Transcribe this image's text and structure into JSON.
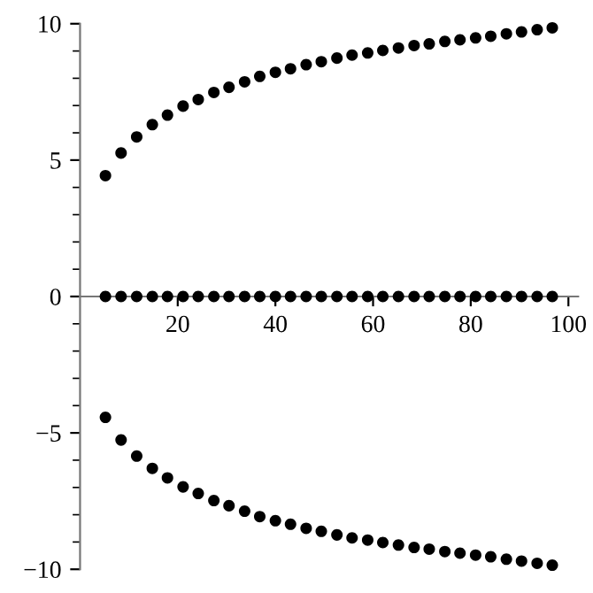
{
  "chart_data": {
    "type": "scatter",
    "marker": "circle",
    "grid": false,
    "legend": false,
    "x": [
      5.2,
      8.4,
      11.6,
      14.8,
      17.9,
      21.1,
      24.2,
      27.4,
      30.5,
      33.7,
      36.8,
      40.0,
      43.1,
      46.3,
      49.4,
      52.6,
      55.7,
      58.9,
      62.0,
      65.2,
      68.4,
      71.5,
      74.7,
      77.8,
      81.0,
      84.1,
      87.3,
      90.4,
      93.6,
      96.7
    ],
    "series": [
      {
        "color": "#000000",
        "values": [
          4.43,
          5.26,
          5.85,
          6.3,
          6.65,
          6.98,
          7.22,
          7.48,
          7.67,
          7.87,
          8.07,
          8.22,
          8.35,
          8.5,
          8.61,
          8.74,
          8.85,
          8.93,
          9.02,
          9.11,
          9.2,
          9.26,
          9.35,
          9.41,
          9.48,
          9.54,
          9.63,
          9.7,
          9.78,
          9.85
        ]
      },
      {
        "color": "#000000",
        "values": [
          0,
          0,
          0,
          0,
          0,
          0,
          0,
          0,
          0,
          0,
          0,
          0,
          0,
          0,
          0,
          0,
          0,
          0,
          0,
          0,
          0,
          0,
          0,
          0,
          0,
          0,
          0,
          0,
          0,
          0
        ]
      },
      {
        "color": "#000000",
        "values": [
          -4.43,
          -5.26,
          -5.85,
          -6.3,
          -6.65,
          -6.98,
          -7.22,
          -7.48,
          -7.67,
          -7.87,
          -8.07,
          -8.22,
          -8.35,
          -8.5,
          -8.61,
          -8.74,
          -8.85,
          -8.93,
          -9.02,
          -9.11,
          -9.2,
          -9.26,
          -9.35,
          -9.41,
          -9.48,
          -9.54,
          -9.63,
          -9.7,
          -9.78,
          -9.85
        ]
      }
    ],
    "xlim": [
      0,
      102
    ],
    "xticks": [
      20,
      40,
      60,
      80,
      100
    ],
    "ylim": [
      -10,
      10
    ],
    "yticks": [
      {
        "value": -10,
        "label": "−10"
      },
      {
        "value": -5,
        "label": "−5"
      },
      0,
      5,
      10
    ]
  }
}
